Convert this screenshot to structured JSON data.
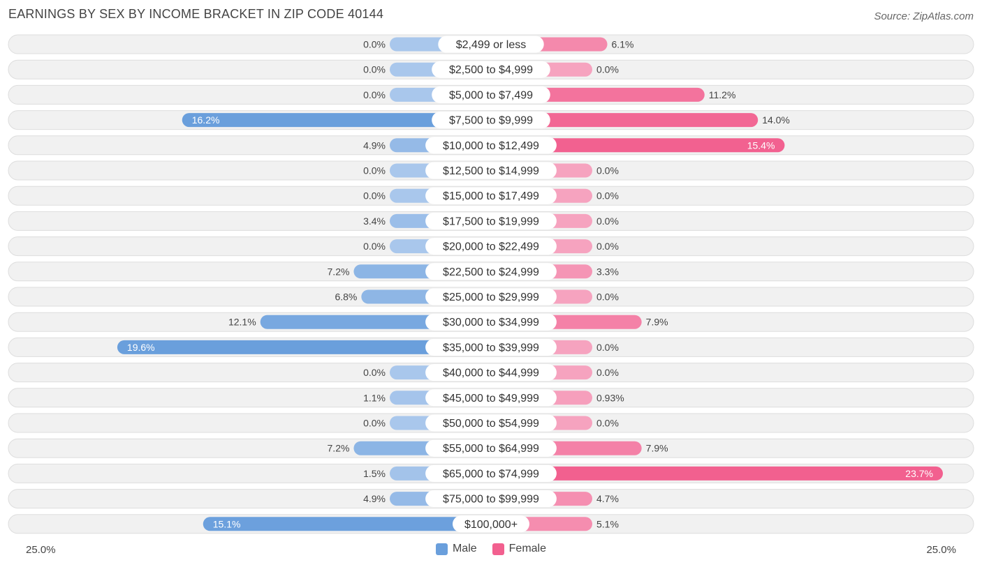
{
  "header": {
    "title": "EARNINGS BY SEX BY INCOME BRACKET IN ZIP CODE 40144",
    "source": "Source: ZipAtlas.com"
  },
  "colors": {
    "male": "#6a9fdc",
    "male_light": "#a9c7ec",
    "female": "#f2608f",
    "female_light": "#f6a3bf",
    "row_bg": "#f1f1f1",
    "row_border": "#dddddd"
  },
  "axis": {
    "left_label": "25.0%",
    "right_label": "25.0%"
  },
  "legend": {
    "male_label": "Male",
    "female_label": "Female"
  },
  "chart_data": {
    "type": "bar",
    "orientation": "horizontal-diverging",
    "title": "EARNINGS BY SEX BY INCOME BRACKET IN ZIP CODE 40144",
    "xlim": [
      -25,
      25
    ],
    "categories": [
      "$2,499 or less",
      "$2,500 to $4,999",
      "$5,000 to $7,499",
      "$7,500 to $9,999",
      "$10,000 to $12,499",
      "$12,500 to $14,999",
      "$15,000 to $17,499",
      "$17,500 to $19,999",
      "$20,000 to $22,499",
      "$22,500 to $24,999",
      "$25,000 to $29,999",
      "$30,000 to $34,999",
      "$35,000 to $39,999",
      "$40,000 to $44,999",
      "$45,000 to $49,999",
      "$50,000 to $54,999",
      "$55,000 to $64,999",
      "$65,000 to $74,999",
      "$75,000 to $99,999",
      "$100,000+"
    ],
    "series": [
      {
        "name": "Male",
        "values": [
          0.0,
          0.0,
          0.0,
          16.2,
          4.9,
          0.0,
          0.0,
          3.4,
          0.0,
          7.2,
          6.8,
          12.1,
          19.6,
          0.0,
          1.1,
          0.0,
          7.2,
          1.5,
          4.9,
          15.1
        ],
        "labels": [
          "0.0%",
          "0.0%",
          "0.0%",
          "16.2%",
          "4.9%",
          "0.0%",
          "0.0%",
          "3.4%",
          "0.0%",
          "7.2%",
          "6.8%",
          "12.1%",
          "19.6%",
          "0.0%",
          "1.1%",
          "0.0%",
          "7.2%",
          "1.5%",
          "4.9%",
          "15.1%"
        ]
      },
      {
        "name": "Female",
        "values": [
          6.1,
          0.0,
          11.2,
          14.0,
          15.4,
          0.0,
          0.0,
          0.0,
          0.0,
          3.3,
          0.0,
          7.9,
          0.0,
          0.0,
          0.93,
          0.0,
          7.9,
          23.7,
          4.7,
          5.1
        ],
        "labels": [
          "6.1%",
          "0.0%",
          "11.2%",
          "14.0%",
          "15.4%",
          "0.0%",
          "0.0%",
          "0.0%",
          "0.0%",
          "3.3%",
          "0.0%",
          "7.9%",
          "0.0%",
          "0.0%",
          "0.93%",
          "0.0%",
          "7.9%",
          "23.7%",
          "4.7%",
          "5.1%"
        ]
      }
    ],
    "legend_position": "bottom-center"
  }
}
